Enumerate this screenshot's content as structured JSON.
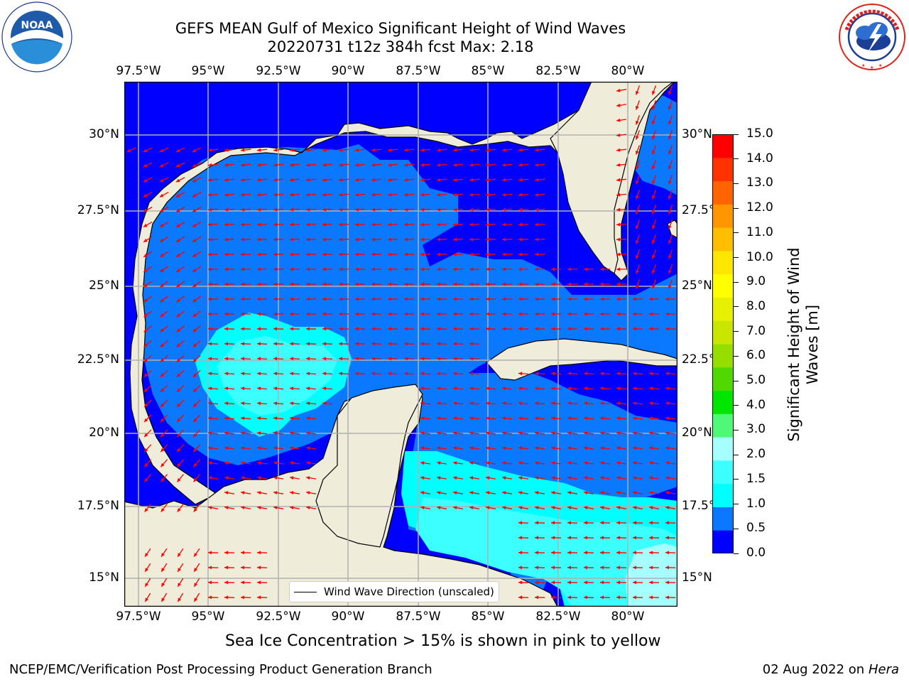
{
  "header": {
    "title_line1": "GEFS MEAN Gulf of Mexico Significant Height of Wind Waves",
    "title_line2": "20220731 t12z 384h fcst   Max: 2.18"
  },
  "logos": {
    "noaa": {
      "text": "NOAA",
      "ring_text": "NATIONAL OCEANIC AND ATMOSPHERIC ADMINISTRATION · U.S. DEPARTMENT OF COMMERCE"
    },
    "nws": {
      "ring_text": "NATIONAL WEATHER SERVICE"
    }
  },
  "map": {
    "lon_range": [
      -98.0,
      -78.0
    ],
    "lat_range": [
      14.0,
      31.5
    ],
    "lon_ticks": [
      "97.5°W",
      "95°W",
      "92.5°W",
      "90°W",
      "87.5°W",
      "85°W",
      "82.5°W",
      "80°W"
    ],
    "lat_ticks": [
      "30°N",
      "27.5°N",
      "25°N",
      "22.5°N",
      "20°N",
      "17.5°N",
      "15°N"
    ],
    "land_color": "#efedda",
    "gridlines": true,
    "arrow_color": "#ff0000",
    "legend_label": "Wind Wave Direction (unscaled)",
    "legend_placement": "bottom-center"
  },
  "colorbar": {
    "label": "Significant Height of Wind Waves [m]",
    "label_line1": "Significant Height of Wind",
    "label_line2": "Waves [m]",
    "ticks": [
      "15.0",
      "14.0",
      "13.0",
      "12.0",
      "11.0",
      "10.0",
      "9.0",
      "8.0",
      "7.0",
      "6.0",
      "5.0",
      "4.0",
      "3.0",
      "2.0",
      "1.5",
      "1.0",
      "0.5",
      "0.0"
    ],
    "colors_bottom_to_top": [
      "#0000ff",
      "#0a78ff",
      "#00ffff",
      "#3cffff",
      "#a6ffff",
      "#50f878",
      "#00e600",
      "#50d800",
      "#96de00",
      "#c8e600",
      "#e6f000",
      "#ffff00",
      "#ffe600",
      "#ffbe00",
      "#ff9600",
      "#ff6400",
      "#ff3200",
      "#ff0000"
    ]
  },
  "sea_ice_note": "Sea Ice Concentration > 15% is shown in pink to yellow",
  "footer": {
    "left": "NCEP/EMC/Verification Post Processing Product Generation Branch",
    "right_date": "02 Aug 2022 on",
    "right_host": "Hera"
  }
}
